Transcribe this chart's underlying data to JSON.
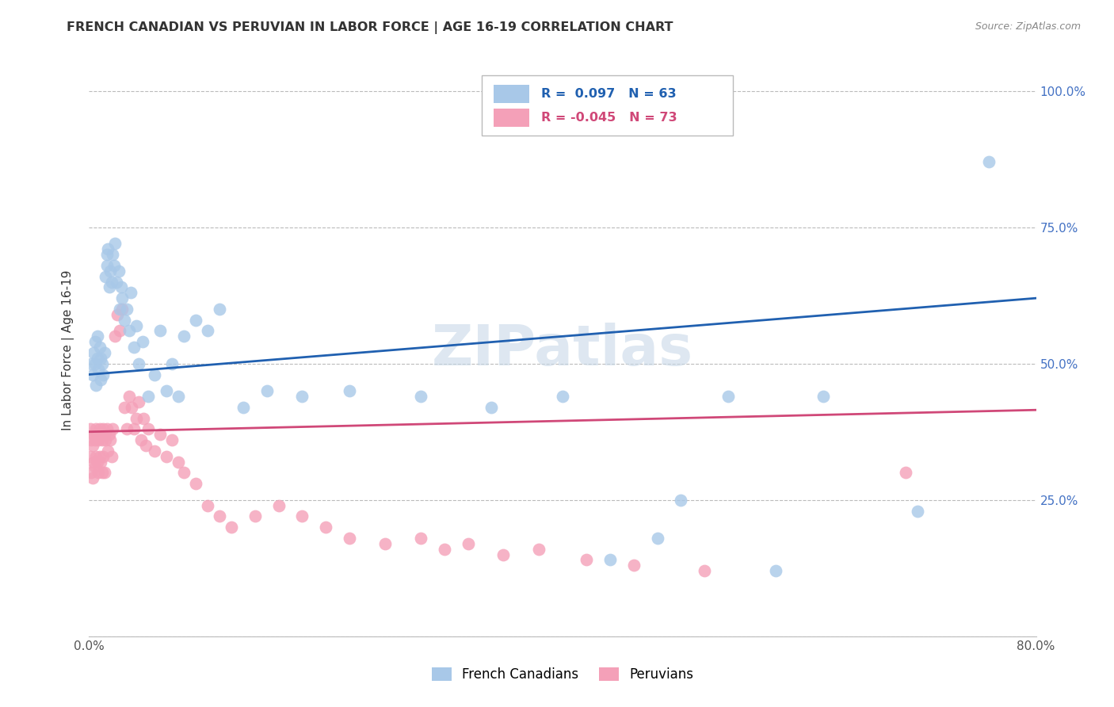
{
  "title": "FRENCH CANADIAN VS PERUVIAN IN LABOR FORCE | AGE 16-19 CORRELATION CHART",
  "source": "Source: ZipAtlas.com",
  "ylabel": "In Labor Force | Age 16-19",
  "x_min": 0.0,
  "x_max": 0.8,
  "y_min": 0.0,
  "y_max": 1.05,
  "x_ticks": [
    0.0,
    0.1,
    0.2,
    0.3,
    0.4,
    0.5,
    0.6,
    0.7,
    0.8
  ],
  "y_ticks": [
    0.0,
    0.25,
    0.5,
    0.75,
    1.0
  ],
  "blue_R": 0.097,
  "blue_N": 63,
  "pink_R": -0.045,
  "pink_N": 73,
  "blue_color": "#a8c8e8",
  "pink_color": "#f4a0b8",
  "blue_line_color": "#2060b0",
  "pink_line_color": "#d04878",
  "legend_blue_label": "French Canadians",
  "legend_pink_label": "Peruvians",
  "watermark": "ZIPatlas",
  "blue_trend_start": 0.48,
  "blue_trend_end": 0.62,
  "pink_trend_start": 0.375,
  "pink_trend_end": 0.415,
  "blue_x": [
    0.002,
    0.003,
    0.004,
    0.005,
    0.005,
    0.006,
    0.007,
    0.007,
    0.008,
    0.009,
    0.01,
    0.01,
    0.011,
    0.012,
    0.013,
    0.014,
    0.015,
    0.015,
    0.016,
    0.017,
    0.018,
    0.019,
    0.02,
    0.021,
    0.022,
    0.023,
    0.025,
    0.026,
    0.027,
    0.028,
    0.03,
    0.032,
    0.034,
    0.035,
    0.038,
    0.04,
    0.042,
    0.045,
    0.05,
    0.055,
    0.06,
    0.065,
    0.07,
    0.075,
    0.08,
    0.09,
    0.1,
    0.11,
    0.13,
    0.15,
    0.18,
    0.22,
    0.28,
    0.34,
    0.4,
    0.44,
    0.48,
    0.5,
    0.54,
    0.58,
    0.62,
    0.7,
    0.76
  ],
  "blue_y": [
    0.5,
    0.48,
    0.52,
    0.5,
    0.54,
    0.46,
    0.51,
    0.55,
    0.49,
    0.53,
    0.47,
    0.51,
    0.5,
    0.48,
    0.52,
    0.66,
    0.7,
    0.68,
    0.71,
    0.64,
    0.67,
    0.65,
    0.7,
    0.68,
    0.72,
    0.65,
    0.67,
    0.6,
    0.64,
    0.62,
    0.58,
    0.6,
    0.56,
    0.63,
    0.53,
    0.57,
    0.5,
    0.54,
    0.44,
    0.48,
    0.56,
    0.45,
    0.5,
    0.44,
    0.55,
    0.58,
    0.56,
    0.6,
    0.42,
    0.45,
    0.44,
    0.45,
    0.44,
    0.42,
    0.44,
    0.14,
    0.18,
    0.25,
    0.44,
    0.12,
    0.44,
    0.23,
    0.87
  ],
  "pink_x": [
    0.001,
    0.001,
    0.002,
    0.002,
    0.003,
    0.003,
    0.004,
    0.004,
    0.005,
    0.005,
    0.006,
    0.006,
    0.007,
    0.007,
    0.008,
    0.008,
    0.009,
    0.009,
    0.01,
    0.01,
    0.011,
    0.011,
    0.012,
    0.012,
    0.013,
    0.013,
    0.014,
    0.015,
    0.016,
    0.017,
    0.018,
    0.019,
    0.02,
    0.022,
    0.024,
    0.026,
    0.028,
    0.03,
    0.032,
    0.034,
    0.036,
    0.038,
    0.04,
    0.042,
    0.044,
    0.046,
    0.048,
    0.05,
    0.055,
    0.06,
    0.065,
    0.07,
    0.075,
    0.08,
    0.09,
    0.1,
    0.11,
    0.12,
    0.14,
    0.16,
    0.18,
    0.2,
    0.22,
    0.25,
    0.28,
    0.3,
    0.32,
    0.35,
    0.38,
    0.42,
    0.46,
    0.52,
    0.69
  ],
  "pink_y": [
    0.38,
    0.33,
    0.36,
    0.3,
    0.35,
    0.29,
    0.37,
    0.32,
    0.36,
    0.31,
    0.38,
    0.33,
    0.37,
    0.32,
    0.36,
    0.3,
    0.38,
    0.33,
    0.37,
    0.32,
    0.36,
    0.3,
    0.38,
    0.33,
    0.37,
    0.3,
    0.36,
    0.38,
    0.34,
    0.37,
    0.36,
    0.33,
    0.38,
    0.55,
    0.59,
    0.56,
    0.6,
    0.42,
    0.38,
    0.44,
    0.42,
    0.38,
    0.4,
    0.43,
    0.36,
    0.4,
    0.35,
    0.38,
    0.34,
    0.37,
    0.33,
    0.36,
    0.32,
    0.3,
    0.28,
    0.24,
    0.22,
    0.2,
    0.22,
    0.24,
    0.22,
    0.2,
    0.18,
    0.17,
    0.18,
    0.16,
    0.17,
    0.15,
    0.16,
    0.14,
    0.13,
    0.12,
    0.3
  ]
}
